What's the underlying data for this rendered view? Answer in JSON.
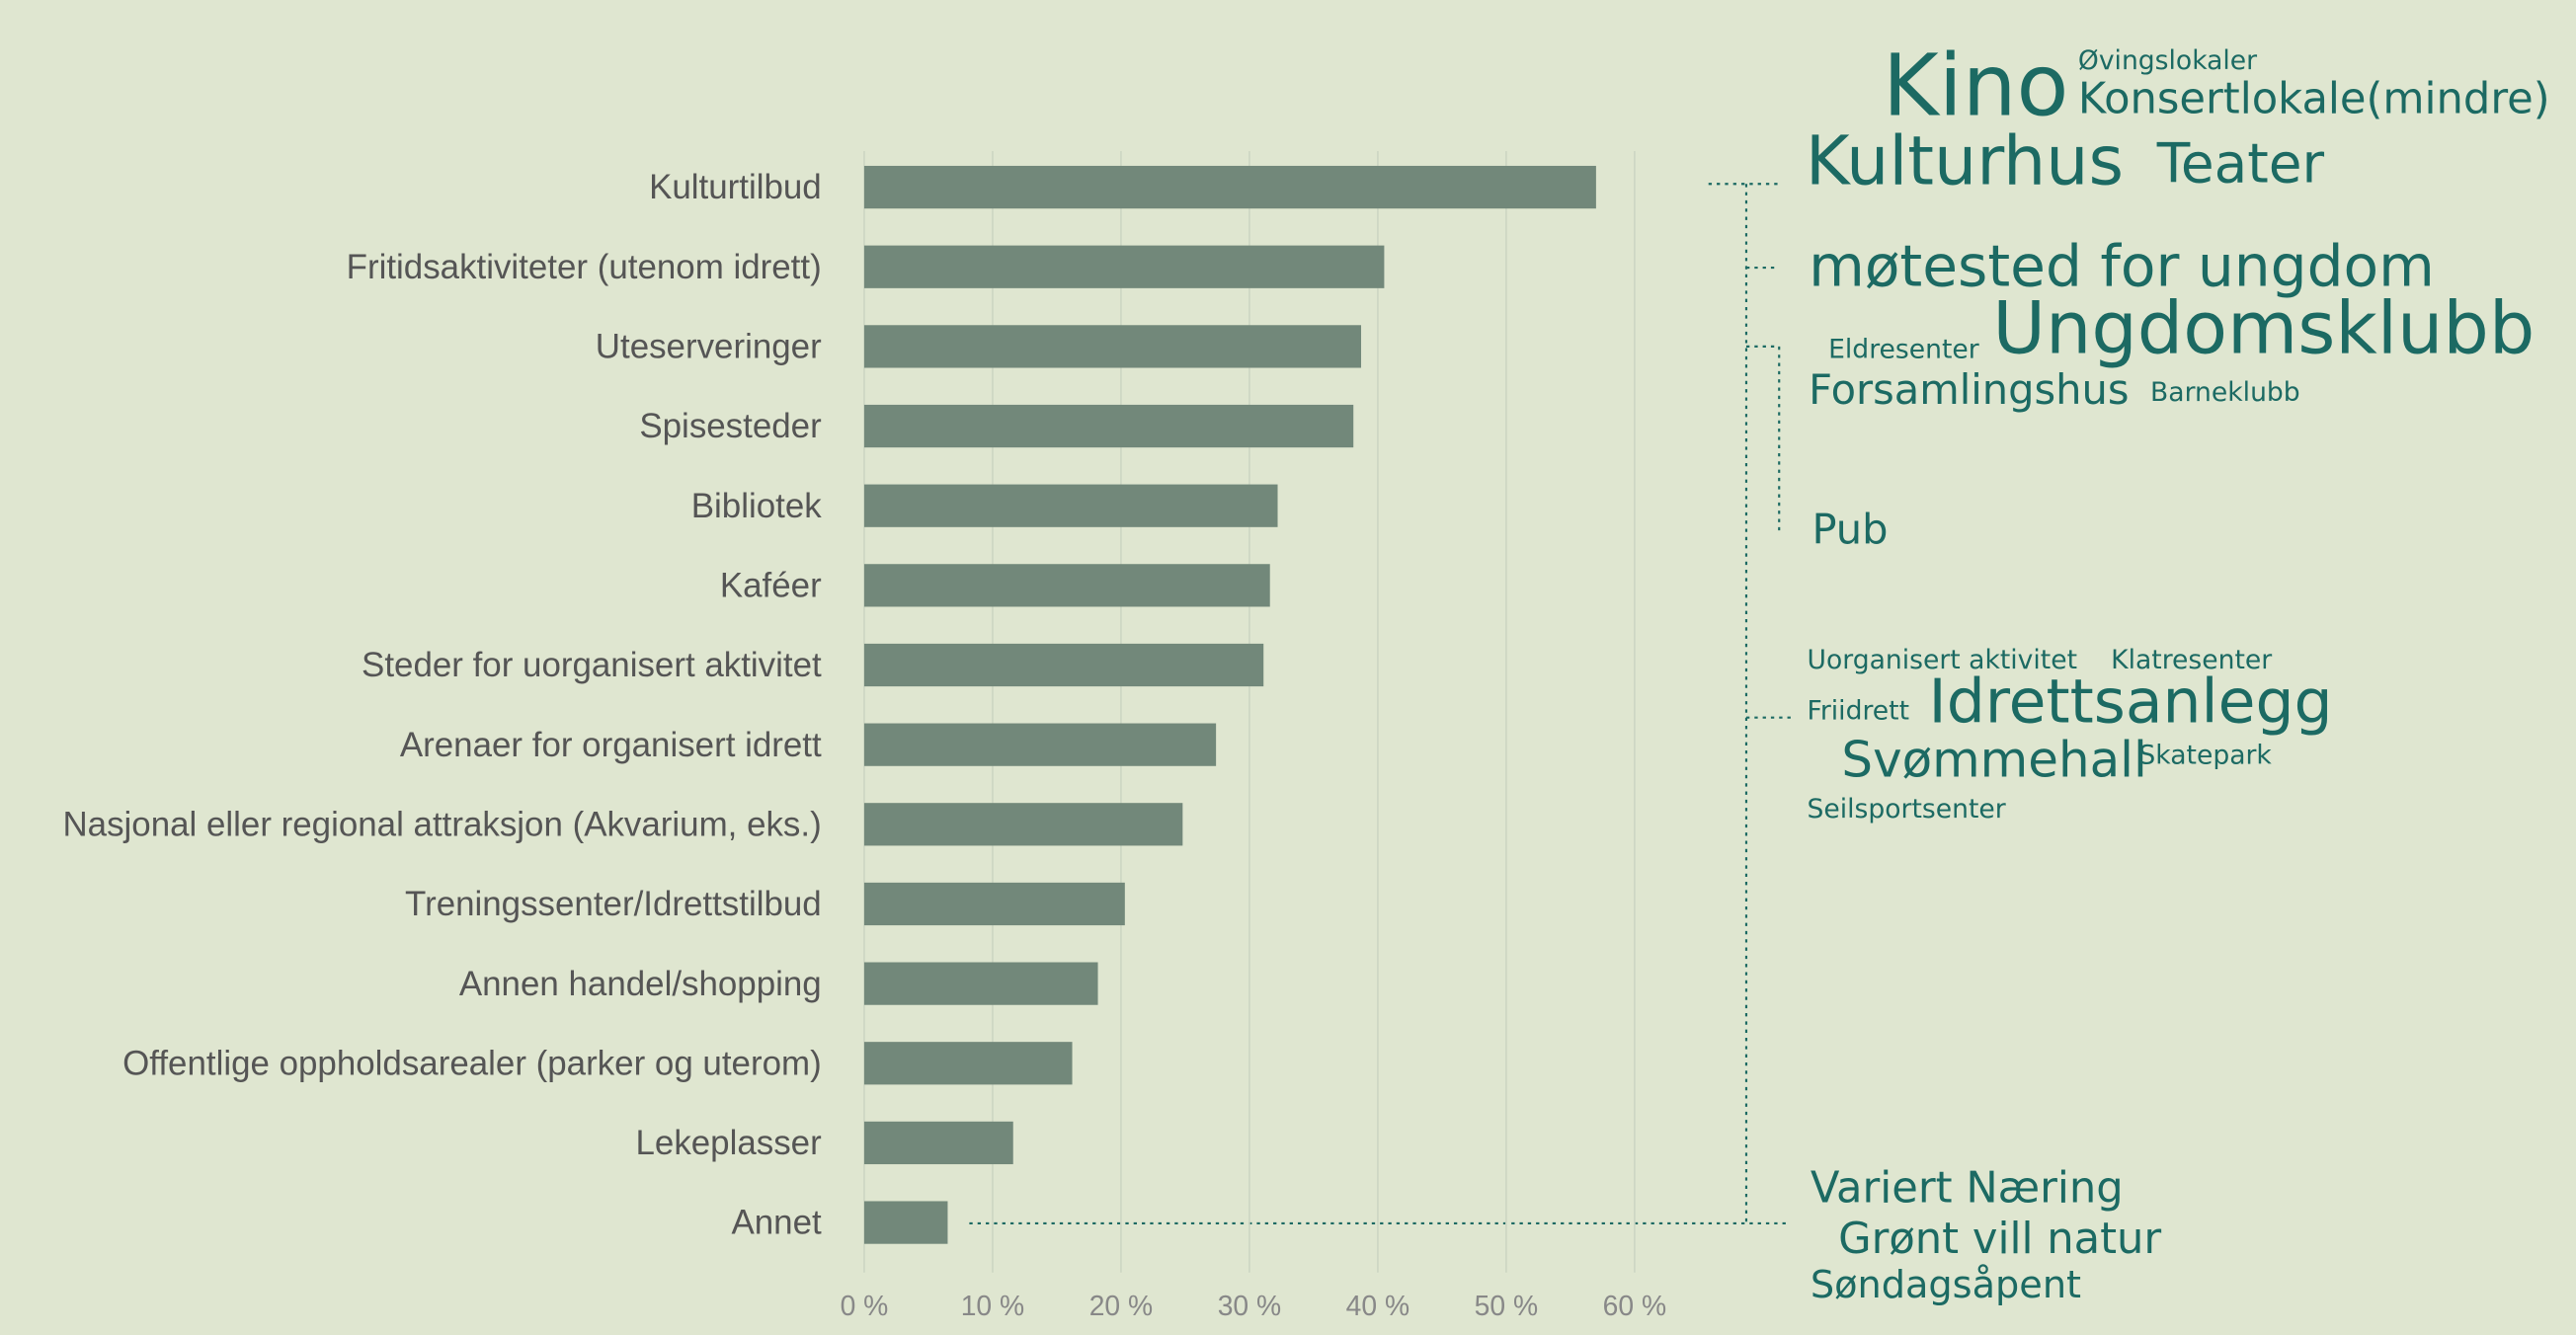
{
  "chart_data": {
    "type": "hbar",
    "categories": [
      "Kulturtilbud",
      "Fritidsaktiviteter (utenom idrett)",
      "Uteserveringer",
      "Spisesteder",
      "Bibliotek",
      "Kaféer",
      "Steder for uorganisert aktivitet",
      "Arenaer for organisert idrett",
      "Nasjonal eller regional attraksjon (Akvarium, eks.)",
      "Treningssenter/Idrettstilbud",
      "Annen handel/shopping",
      "Offentlige oppholdsarealer (parker og uterom)",
      "Lekeplasser",
      "Annet"
    ],
    "values": [
      57.0,
      40.5,
      38.7,
      38.1,
      32.2,
      31.6,
      31.1,
      27.4,
      24.8,
      20.3,
      18.2,
      16.2,
      11.6,
      6.5
    ],
    "color": "#72887a",
    "xlim": [
      0,
      60
    ],
    "xticks": [
      {
        "value": 0,
        "label": "0 %"
      },
      {
        "value": 10,
        "label": "10 %"
      },
      {
        "value": 20,
        "label": "20 %"
      },
      {
        "value": 30,
        "label": "30 %"
      },
      {
        "value": 40,
        "label": "40 %"
      },
      {
        "value": 50,
        "label": "50 %"
      },
      {
        "value": 60,
        "label": "60 %"
      }
    ],
    "grid": true,
    "word_clouds": [
      {
        "words": [
          "Kino",
          "Øvingslokaler",
          "Konsertlokale(mindre)",
          "Kulturhus",
          "Teater"
        ]
      },
      {
        "words": [
          "møtested for ungdom",
          "Eldresenter",
          "Ungdomsklubb",
          "Forsamlingshus",
          "Barneklubb",
          "Pub"
        ]
      },
      {
        "words": [
          "Uorganisert aktivitet",
          "Klatresenter",
          "Friidrett",
          "Idrettsanlegg",
          "Svømmehall",
          "Skatepark",
          "Seilsportsenter"
        ]
      },
      {
        "words": [
          "Variert Næring",
          "Grønt vill natur",
          "Søndagsåpent"
        ]
      }
    ]
  }
}
